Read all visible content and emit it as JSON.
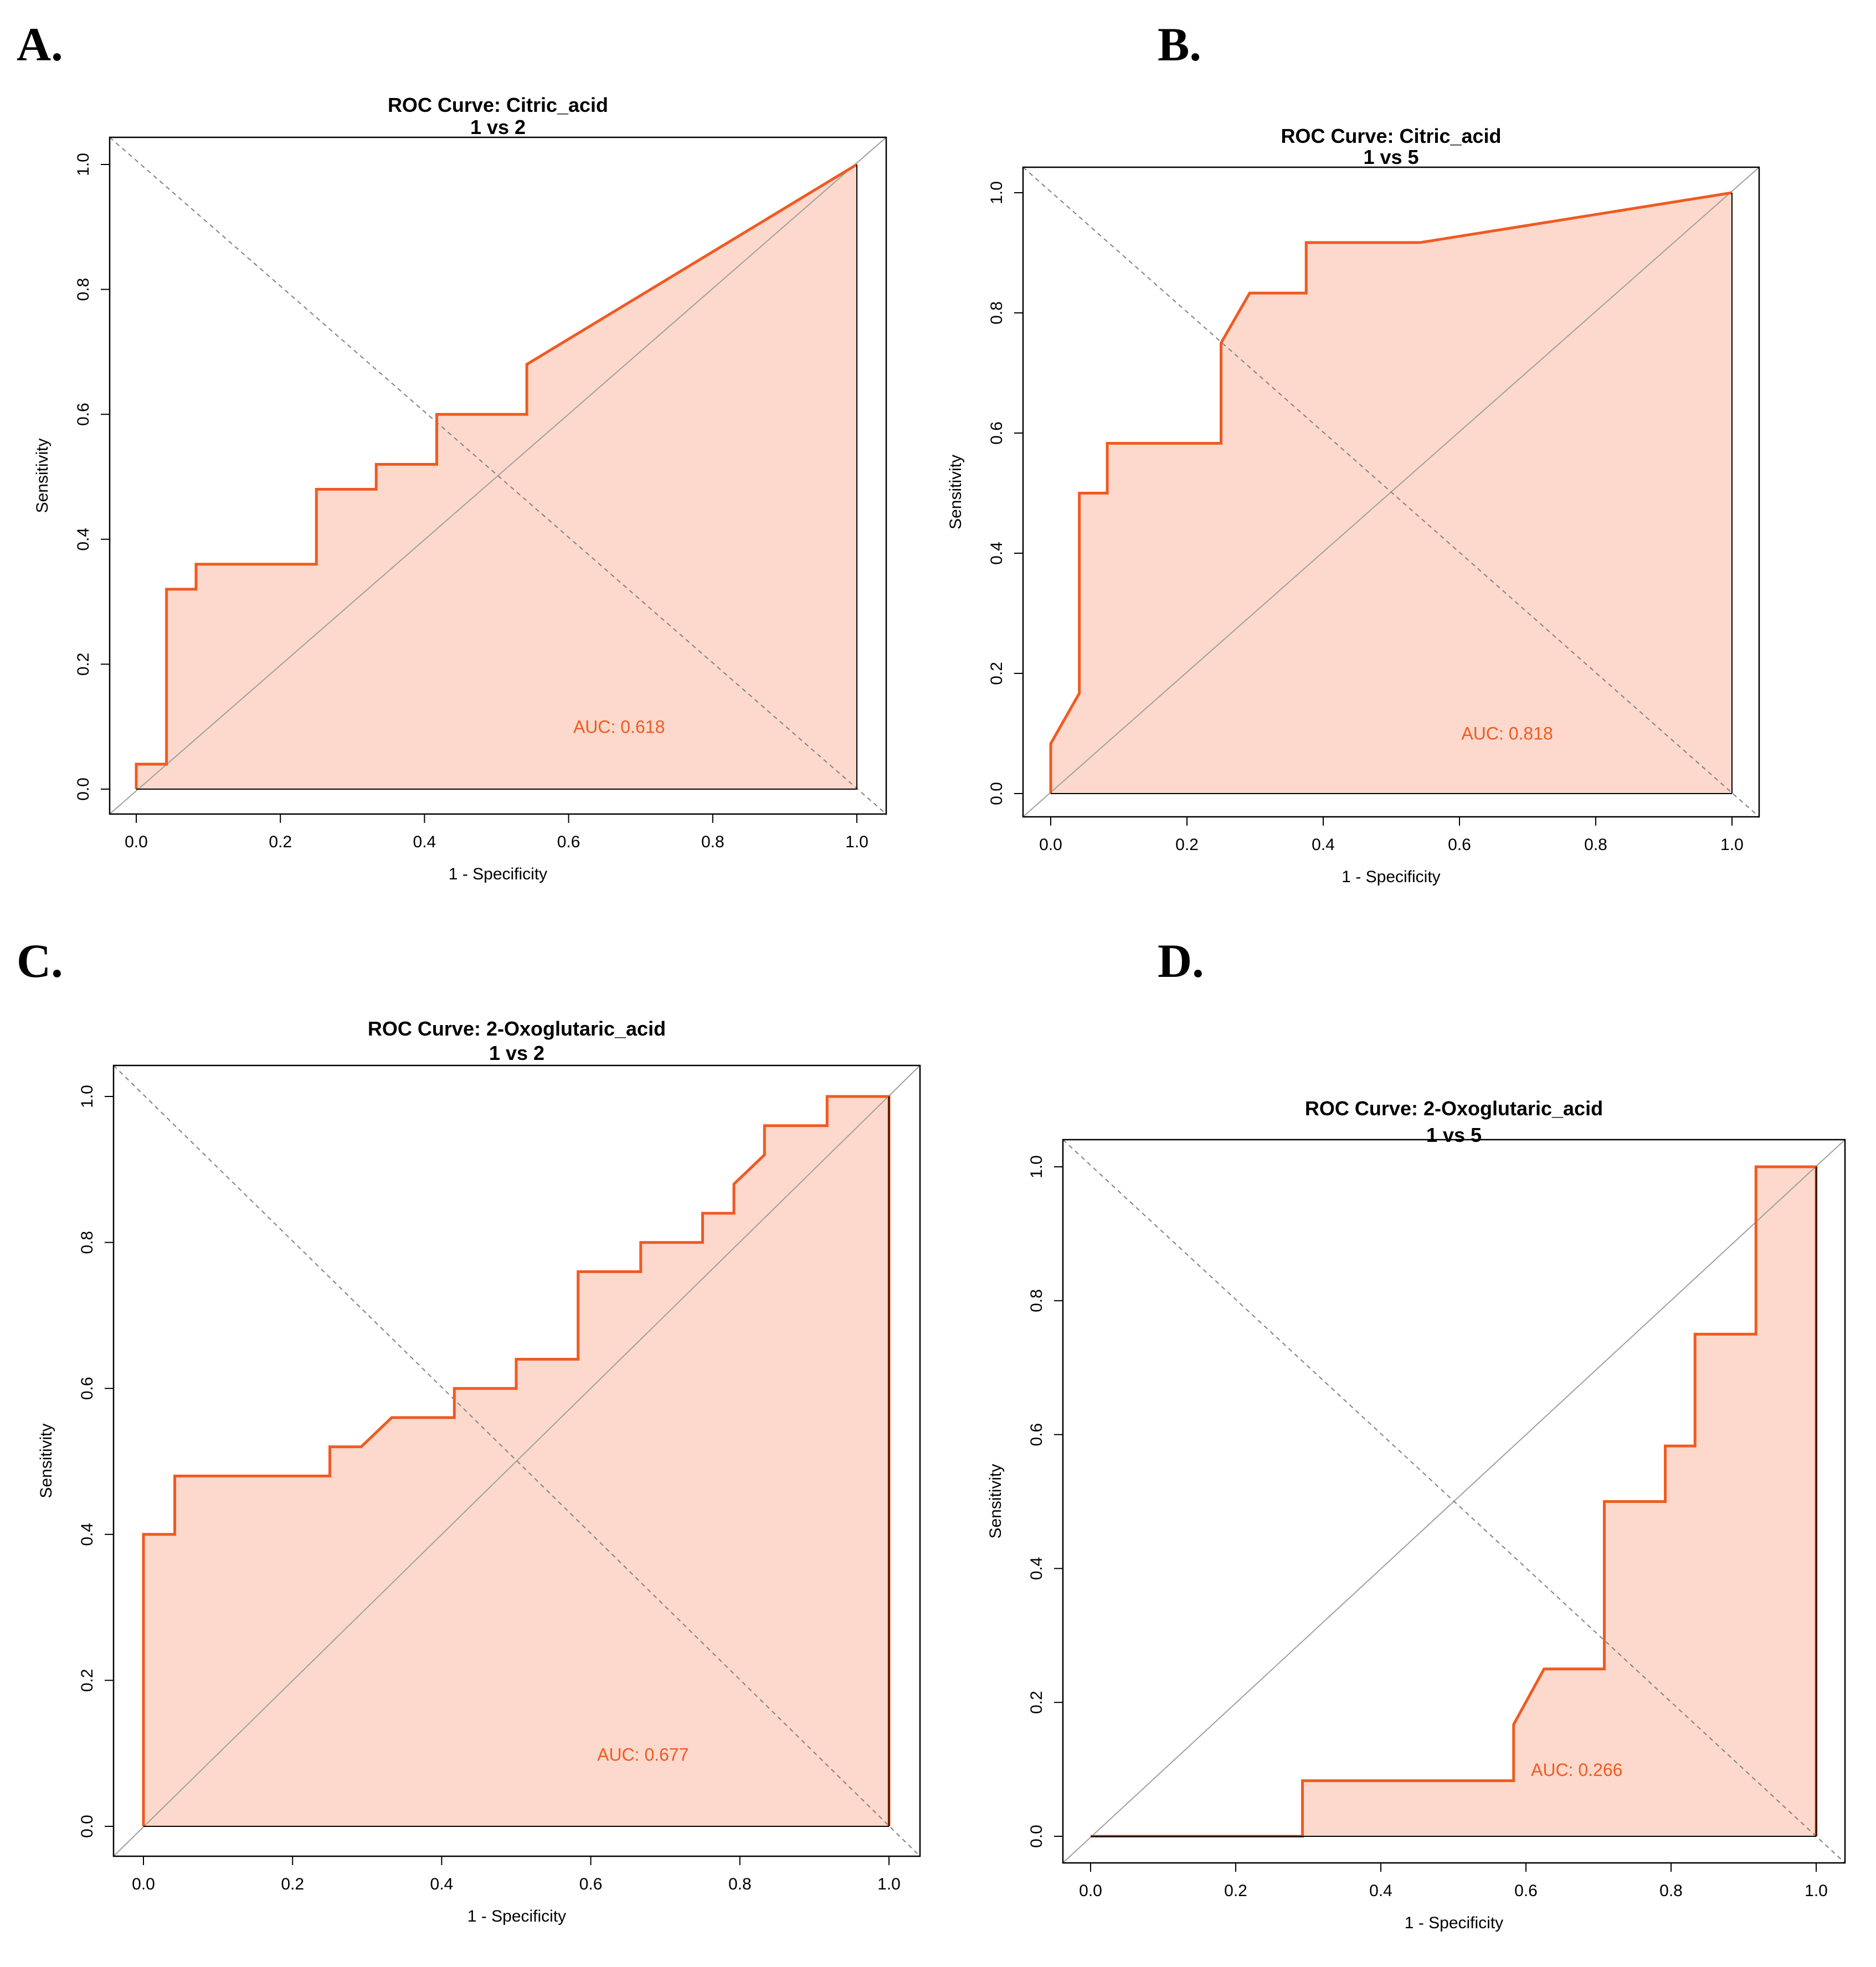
{
  "panels": [
    {
      "letter": "A."
    },
    {
      "letter": "B."
    },
    {
      "letter": "C."
    },
    {
      "letter": "D."
    }
  ],
  "colors": {
    "curve": "#f05a22",
    "fill": "#fcd9cc",
    "reference_line": "#a0a0a0",
    "diagonal_dashed": "#808080",
    "frame": "#000000"
  },
  "chart_data": [
    {
      "type": "line",
      "title": "ROC Curve: Citric_acid",
      "subtitle": "1 vs 2",
      "xlabel": "1 - Specificity",
      "ylabel": "Sensitivity",
      "xlim": [
        0,
        1
      ],
      "ylim": [
        0,
        1
      ],
      "ticks": [
        "0.0",
        "0.2",
        "0.4",
        "0.6",
        "0.8",
        "1.0"
      ],
      "auc_label": "AUC: 0.618",
      "auc_position": [
        0.67,
        0.09
      ],
      "x": [
        0,
        0,
        0.042,
        0.042,
        0.083,
        0.083,
        0.25,
        0.25,
        0.333,
        0.333,
        0.417,
        0.417,
        0.542,
        0.542,
        1.0
      ],
      "y": [
        0,
        0.04,
        0.04,
        0.32,
        0.32,
        0.36,
        0.36,
        0.48,
        0.48,
        0.52,
        0.52,
        0.6,
        0.6,
        0.68,
        1.0
      ]
    },
    {
      "type": "line",
      "title": "ROC Curve: Citric_acid",
      "subtitle": "1 vs 5",
      "xlabel": "1 - Specificity",
      "ylabel": "Sensitivity",
      "xlim": [
        0,
        1
      ],
      "ylim": [
        0,
        1
      ],
      "ticks": [
        "0.0",
        "0.2",
        "0.4",
        "0.6",
        "0.8",
        "1.0"
      ],
      "auc_label": "AUC: 0.818",
      "auc_position": [
        0.67,
        0.09
      ],
      "x": [
        0,
        0,
        0.042,
        0.042,
        0.083,
        0.083,
        0.25,
        0.25,
        0.292,
        0.375,
        0.375,
        0.542,
        1.0
      ],
      "y": [
        0,
        0.083,
        0.167,
        0.5,
        0.5,
        0.583,
        0.583,
        0.75,
        0.833,
        0.833,
        0.917,
        0.917,
        1.0
      ]
    },
    {
      "type": "line",
      "title": "ROC Curve: 2-Oxoglutaric_acid",
      "subtitle": "1 vs 2",
      "xlabel": "1 - Specificity",
      "ylabel": "Sensitivity",
      "xlim": [
        0,
        1
      ],
      "ylim": [
        0,
        1
      ],
      "ticks": [
        "0.0",
        "0.2",
        "0.4",
        "0.6",
        "0.8",
        "1.0"
      ],
      "auc_label": "AUC: 0.677",
      "auc_position": [
        0.67,
        0.09
      ],
      "x": [
        0,
        0,
        0.042,
        0.042,
        0.25,
        0.25,
        0.292,
        0.333,
        0.417,
        0.417,
        0.5,
        0.5,
        0.583,
        0.583,
        0.667,
        0.667,
        0.75,
        0.75,
        0.792,
        0.792,
        0.833,
        0.833,
        0.917,
        0.917,
        1.0,
        1.0
      ],
      "y": [
        0,
        0.4,
        0.4,
        0.48,
        0.48,
        0.52,
        0.52,
        0.56,
        0.56,
        0.6,
        0.6,
        0.64,
        0.64,
        0.76,
        0.76,
        0.8,
        0.8,
        0.84,
        0.84,
        0.88,
        0.92,
        0.96,
        0.96,
        1.0,
        1.0,
        0
      ]
    },
    {
      "type": "line",
      "title": "ROC Curve: 2-Oxoglutaric_acid",
      "subtitle": "1 vs 5",
      "xlabel": "1 - Specificity",
      "ylabel": "Sensitivity",
      "xlim": [
        0,
        1
      ],
      "ylim": [
        0,
        1
      ],
      "ticks": [
        "0.0",
        "0.2",
        "0.4",
        "0.6",
        "0.8",
        "1.0"
      ],
      "auc_label": "AUC: 0.266",
      "auc_position": [
        0.67,
        0.09
      ],
      "x": [
        0,
        0.292,
        0.292,
        0.583,
        0.583,
        0.625,
        0.708,
        0.708,
        0.792,
        0.792,
        0.833,
        0.833,
        0.917,
        0.917,
        1.0,
        1.0
      ],
      "y": [
        0,
        0,
        0.083,
        0.083,
        0.167,
        0.25,
        0.25,
        0.5,
        0.5,
        0.583,
        0.583,
        0.75,
        0.75,
        1.0,
        1.0,
        0
      ]
    }
  ]
}
